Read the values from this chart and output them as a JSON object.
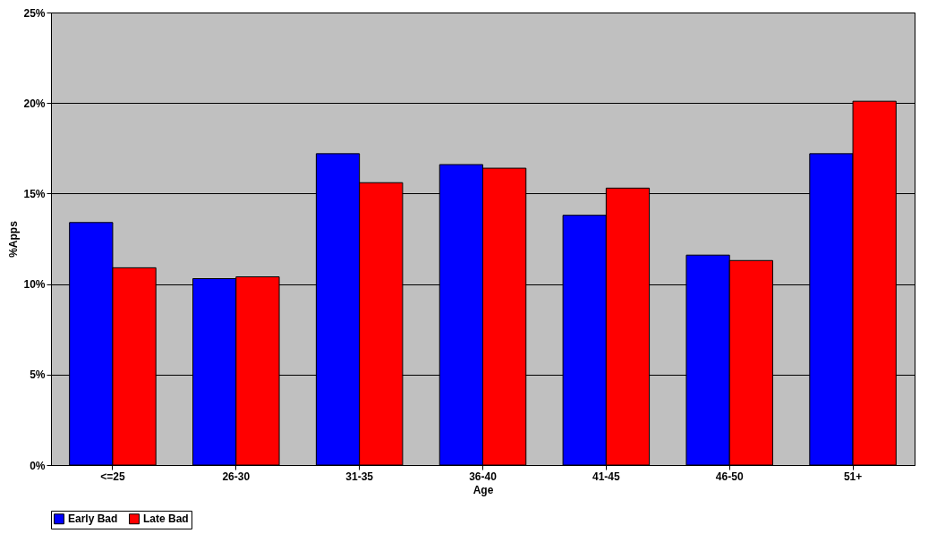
{
  "chart_data": {
    "type": "bar",
    "xlabel": "Age",
    "ylabel": "%Apps",
    "categories": [
      "<=25",
      "26-30",
      "31-35",
      "36-40",
      "41-45",
      "46-50",
      "51+"
    ],
    "series": [
      {
        "name": "Early Bad",
        "color": "#0000ff",
        "values": [
          13.4,
          10.3,
          17.2,
          16.6,
          13.8,
          11.6,
          17.2
        ]
      },
      {
        "name": "Late Bad",
        "color": "#ff0000",
        "values": [
          10.9,
          10.4,
          15.6,
          16.4,
          15.3,
          11.3,
          20.1
        ]
      }
    ],
    "ylim": [
      0,
      25
    ],
    "yticks": [
      {
        "value": 0,
        "label": "0%"
      },
      {
        "value": 5,
        "label": "5%"
      },
      {
        "value": 10,
        "label": "10%"
      },
      {
        "value": 15,
        "label": "15%"
      },
      {
        "value": 20,
        "label": "20%"
      },
      {
        "value": 25,
        "label": "25%"
      }
    ],
    "grid": "y",
    "legend": "bottom"
  }
}
